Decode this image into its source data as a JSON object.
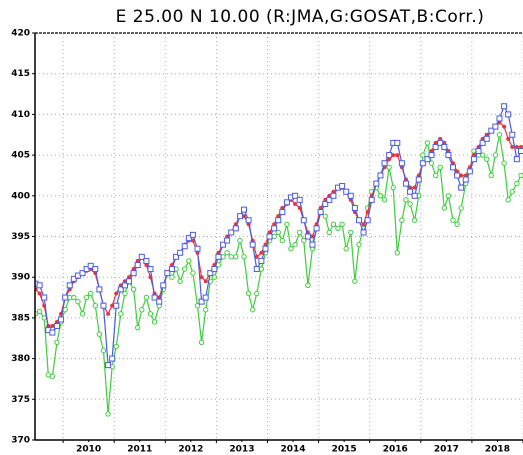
{
  "chart_data": {
    "type": "line",
    "title": "E 25.00 N 10.00 (R:JMA,G:GOSAT,B:Corr.)",
    "xlim": [
      2009.45,
      2019.0
    ],
    "xticks": [
      {
        "value": 2010.5,
        "label": "2010"
      },
      {
        "value": 2011.5,
        "label": "2011"
      },
      {
        "value": 2012.5,
        "label": "2012"
      },
      {
        "value": 2013.5,
        "label": "2013"
      },
      {
        "value": 2014.5,
        "label": "2014"
      },
      {
        "value": 2015.5,
        "label": "2015"
      },
      {
        "value": 2016.5,
        "label": "2016"
      },
      {
        "value": 2017.5,
        "label": "2017"
      },
      {
        "value": 2018.5,
        "label": "2018"
      }
    ],
    "xminorticks": [
      2010,
      2011,
      2012,
      2013,
      2014,
      2015,
      2016,
      2017,
      2018,
      2019
    ],
    "ylim": [
      370,
      420
    ],
    "yticks": [
      370,
      375,
      380,
      385,
      390,
      395,
      400,
      405,
      410,
      415,
      420
    ],
    "grid": true,
    "x": [
      2009.46,
      2009.54,
      2009.63,
      2009.71,
      2009.79,
      2009.88,
      2009.96,
      2010.04,
      2010.13,
      2010.21,
      2010.29,
      2010.38,
      2010.46,
      2010.54,
      2010.63,
      2010.71,
      2010.79,
      2010.88,
      2010.96,
      2011.04,
      2011.13,
      2011.21,
      2011.29,
      2011.38,
      2011.46,
      2011.54,
      2011.63,
      2011.71,
      2011.79,
      2011.88,
      2011.96,
      2012.04,
      2012.13,
      2012.21,
      2012.29,
      2012.38,
      2012.46,
      2012.54,
      2012.63,
      2012.71,
      2012.79,
      2012.88,
      2012.96,
      2013.04,
      2013.13,
      2013.21,
      2013.29,
      2013.38,
      2013.46,
      2013.54,
      2013.63,
      2013.71,
      2013.79,
      2013.88,
      2013.96,
      2014.04,
      2014.13,
      2014.21,
      2014.29,
      2014.38,
      2014.46,
      2014.54,
      2014.63,
      2014.71,
      2014.79,
      2014.88,
      2014.96,
      2015.04,
      2015.13,
      2015.21,
      2015.29,
      2015.38,
      2015.46,
      2015.54,
      2015.63,
      2015.71,
      2015.79,
      2015.88,
      2015.96,
      2016.04,
      2016.13,
      2016.21,
      2016.29,
      2016.38,
      2016.46,
      2016.54,
      2016.63,
      2016.71,
      2016.79,
      2016.88,
      2016.96,
      2017.04,
      2017.13,
      2017.21,
      2017.29,
      2017.38,
      2017.46,
      2017.54,
      2017.63,
      2017.71,
      2017.79,
      2017.88,
      2017.96,
      2018.04,
      2018.13,
      2018.21,
      2018.29,
      2018.38,
      2018.46,
      2018.54,
      2018.63,
      2018.71,
      2018.79,
      2018.88,
      2018.96
    ],
    "series": [
      {
        "color": "#3fcc3f",
        "marker": "circle",
        "values": [
          385.5,
          385.8,
          385.0,
          378.0,
          377.8,
          382.0,
          384.5,
          386.0,
          387.5,
          387.5,
          387.0,
          385.5,
          387.5,
          388.0,
          386.5,
          383.0,
          381.0,
          373.2,
          379.0,
          381.5,
          385.5,
          388.0,
          389.5,
          388.5,
          383.8,
          386.0,
          387.5,
          385.5,
          384.5,
          386.5,
          388.5,
          390.5,
          390.0,
          391.0,
          389.5,
          391.0,
          392.0,
          390.5,
          386.5,
          382.0,
          386.0,
          389.5,
          390.0,
          391.5,
          392.5,
          393.0,
          392.5,
          392.5,
          394.5,
          392.5,
          388.0,
          386.0,
          388.0,
          391.0,
          393.0,
          394.5,
          395.0,
          395.5,
          394.5,
          396.5,
          393.5,
          394.0,
          395.5,
          394.5,
          389.0,
          393.5,
          396.0,
          398.0,
          397.5,
          395.5,
          396.5,
          396.0,
          396.5,
          393.5,
          395.5,
          389.5,
          394.0,
          396.0,
          398.5,
          400.5,
          401.0,
          400.0,
          399.5,
          403.5,
          401.0,
          393.0,
          397.0,
          399.5,
          399.0,
          397.0,
          400.0,
          405.0,
          406.5,
          404.0,
          402.5,
          403.5,
          398.5,
          400.0,
          397.0,
          396.5,
          398.5,
          401.5,
          403.0,
          405.5,
          405.0,
          405.0,
          404.5,
          402.5,
          405.0,
          407.5,
          404.0,
          399.5,
          400.5,
          401.5,
          402.5
        ]
      },
      {
        "color": "#e8363c",
        "marker": "dot",
        "values": [
          388.5,
          388.0,
          386.5,
          384.0,
          384.0,
          384.5,
          385.5,
          387.5,
          388.5,
          389.5,
          390.0,
          390.5,
          390.8,
          391.0,
          390.5,
          388.5,
          386.5,
          385.5,
          386.5,
          388.0,
          389.0,
          389.5,
          390.0,
          391.0,
          392.0,
          392.5,
          391.5,
          390.0,
          388.0,
          387.5,
          389.0,
          390.5,
          391.5,
          392.5,
          393.0,
          394.0,
          394.5,
          394.5,
          393.0,
          390.0,
          389.5,
          390.5,
          391.5,
          393.0,
          394.0,
          395.0,
          395.5,
          396.5,
          397.5,
          397.5,
          396.5,
          394.5,
          392.5,
          393.0,
          394.0,
          395.5,
          396.5,
          397.5,
          398.5,
          399.0,
          399.5,
          399.0,
          398.5,
          397.0,
          395.5,
          395.0,
          396.5,
          398.5,
          399.5,
          400.0,
          400.5,
          401.0,
          401.0,
          400.5,
          399.5,
          398.0,
          397.0,
          396.5,
          398.0,
          400.0,
          401.5,
          402.5,
          403.5,
          404.5,
          405.0,
          405.0,
          403.5,
          402.0,
          401.0,
          401.0,
          402.5,
          404.0,
          404.5,
          405.5,
          406.5,
          407.0,
          406.5,
          405.5,
          404.0,
          403.0,
          402.5,
          402.5,
          403.5,
          405.0,
          406.0,
          407.0,
          407.5,
          408.0,
          408.5,
          409.0,
          408.5,
          407.0,
          406.0,
          406.0,
          406.0
        ]
      },
      {
        "color": "#4a5ce0",
        "marker": "square",
        "values": [
          389.2,
          389.0,
          387.5,
          383.5,
          383.2,
          384.0,
          384.8,
          387.5,
          389.0,
          389.8,
          390.2,
          390.5,
          391.0,
          391.4,
          391.0,
          388.5,
          386.5,
          379.2,
          380.0,
          386.5,
          388.5,
          389.0,
          389.5,
          390.5,
          391.5,
          392.5,
          392.0,
          391.0,
          387.5,
          387.0,
          389.0,
          390.5,
          391.0,
          392.5,
          393.0,
          393.8,
          394.8,
          395.2,
          393.5,
          387.0,
          387.5,
          390.5,
          391.0,
          392.5,
          394.0,
          394.5,
          395.5,
          396.0,
          397.5,
          398.3,
          397.0,
          394.0,
          391.0,
          392.0,
          393.5,
          395.0,
          396.0,
          397.0,
          398.0,
          399.2,
          399.8,
          400.0,
          399.5,
          397.0,
          395.0,
          394.0,
          396.0,
          398.0,
          399.0,
          399.5,
          400.0,
          401.0,
          401.2,
          400.5,
          400.0,
          398.5,
          397.0,
          395.5,
          397.0,
          399.5,
          401.5,
          402.5,
          404.0,
          405.0,
          406.5,
          406.5,
          404.0,
          401.5,
          400.5,
          400.0,
          402.0,
          404.0,
          404.5,
          405.0,
          406.0,
          406.5,
          406.0,
          405.0,
          403.5,
          402.5,
          401.0,
          402.0,
          403.0,
          404.5,
          405.5,
          406.5,
          407.0,
          408.0,
          408.5,
          409.5,
          411.0,
          410.0,
          407.5,
          404.5,
          405.5
        ]
      }
    ]
  }
}
